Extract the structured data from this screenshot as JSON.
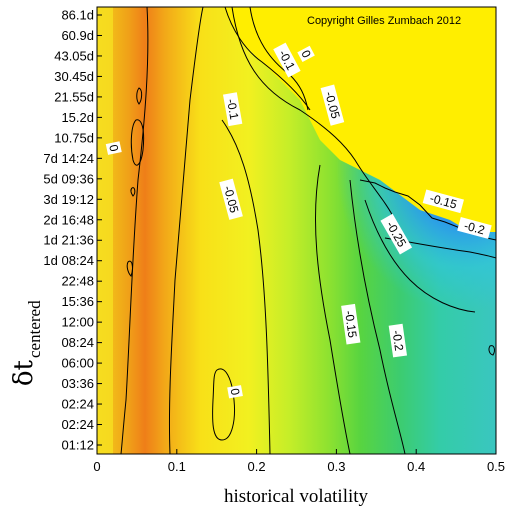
{
  "chart_data": {
    "type": "heatmap",
    "title": "",
    "copyright": "Copyright Gilles Zumbach 2012",
    "xlabel": "historical volatility",
    "ylabel_main": "δt",
    "ylabel_sub": "centered",
    "xlim": [
      0,
      0.5
    ],
    "x_ticks": [
      {
        "value": 0,
        "label": "0"
      },
      {
        "value": 0.1,
        "label": "0.1"
      },
      {
        "value": 0.2,
        "label": "0.2"
      },
      {
        "value": 0.3,
        "label": "0.3"
      },
      {
        "value": 0.4,
        "label": "0.4"
      },
      {
        "value": 0.5,
        "label": "0.5"
      }
    ],
    "y_ticks": [
      "01:12",
      "02:24",
      "02:24",
      "03:36",
      "06:00",
      "08:24",
      "12:00",
      "15:36",
      "22:48",
      "1d 08:24",
      "1d 21:36",
      "2d 16:48",
      "3d 19:12",
      "5d 09:36",
      "7d 14:24",
      "10.75d",
      "15.2d",
      "21.55d",
      "30.45d",
      "43.05d",
      "60.9d",
      "86.1d"
    ],
    "colorscale": [
      "#f07818",
      "#f8d818",
      "#ffee00",
      "#c8f020",
      "#50d040",
      "#30d8a0",
      "#30b0f0",
      "#1050e0"
    ],
    "contour_levels": [
      -0.25,
      -0.2,
      -0.15,
      -0.1,
      -0.05,
      0
    ],
    "contour_labels": [
      {
        "text": "0",
        "x": 0.021,
        "yi": 14.5
      },
      {
        "text": "0",
        "x": 0.173,
        "yi": 2.6
      },
      {
        "text": "-0.1",
        "x": 0.238,
        "yi": 18.8
      },
      {
        "text": "0",
        "x": 0.262,
        "yi": 19.1
      },
      {
        "text": "-0.1",
        "x": 0.17,
        "yi": 16.4
      },
      {
        "text": "-0.05",
        "x": 0.295,
        "yi": 16.6
      },
      {
        "text": "-0.05",
        "x": 0.168,
        "yi": 12.0
      },
      {
        "text": "-0.15",
        "x": 0.434,
        "yi": 11.9
      },
      {
        "text": "-0.2",
        "x": 0.473,
        "yi": 10.6
      },
      {
        "text": "-0.25",
        "x": 0.375,
        "yi": 10.3
      },
      {
        "text": "-0.15",
        "x": 0.318,
        "yi": 5.9
      },
      {
        "text": "-0.2",
        "x": 0.377,
        "yi": 5.1
      }
    ]
  }
}
